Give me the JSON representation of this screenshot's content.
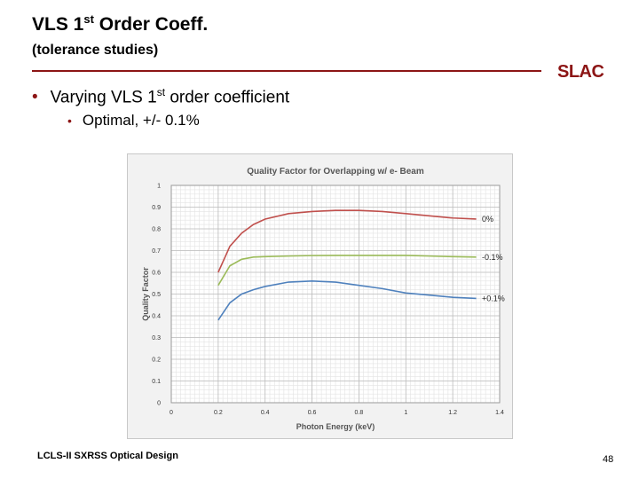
{
  "slide": {
    "title_main": "VLS 1",
    "title_sup": "st",
    "title_rest": " Order Coeff.",
    "subtitle": "(tolerance studies)",
    "logo": "SLAC",
    "bullet1_main": "Varying VLS 1",
    "bullet1_sup": "st",
    "bullet1_rest": " order coefficient",
    "bullet2": "Optimal, +/- 0.1%",
    "bullet_glyph": "•",
    "footer_left": "LCLS-II SXRSS Optical Design",
    "footer_right": "48",
    "accent_color": "#8c1515"
  },
  "chart_data": {
    "type": "line",
    "title": "Quality Factor for Overlapping w/ e- Beam",
    "xlabel": "Photon Energy (keV)",
    "ylabel": "Quality Factor",
    "xlim": [
      0,
      1.4
    ],
    "ylim": [
      0,
      1
    ],
    "x_ticks": [
      "0",
      "0.2",
      "0.4",
      "0.6",
      "0.8",
      "1",
      "1.2",
      "1.4"
    ],
    "y_ticks": [
      "0",
      "0.1",
      "0.2",
      "0.3",
      "0.4",
      "0.5",
      "0.6",
      "0.7",
      "0.8",
      "0.9",
      "1"
    ],
    "grid": true,
    "series": [
      {
        "name": "0%",
        "color": "#c0504d",
        "x": [
          0.2,
          0.25,
          0.3,
          0.35,
          0.4,
          0.5,
          0.6,
          0.7,
          0.8,
          0.9,
          1.0,
          1.1,
          1.2,
          1.3
        ],
        "y": [
          0.6,
          0.72,
          0.78,
          0.82,
          0.845,
          0.87,
          0.88,
          0.885,
          0.885,
          0.88,
          0.87,
          0.86,
          0.85,
          0.845
        ]
      },
      {
        "name": "-0.1%",
        "color": "#9bbb59",
        "x": [
          0.2,
          0.25,
          0.3,
          0.35,
          0.4,
          0.5,
          0.6,
          0.7,
          0.8,
          0.9,
          1.0,
          1.1,
          1.2,
          1.3
        ],
        "y": [
          0.54,
          0.63,
          0.66,
          0.67,
          0.672,
          0.675,
          0.677,
          0.678,
          0.678,
          0.678,
          0.678,
          0.675,
          0.672,
          0.67
        ]
      },
      {
        "name": "+0.1%",
        "color": "#4f81bd",
        "x": [
          0.2,
          0.25,
          0.3,
          0.35,
          0.4,
          0.5,
          0.6,
          0.7,
          0.8,
          0.9,
          1.0,
          1.1,
          1.2,
          1.3
        ],
        "y": [
          0.38,
          0.46,
          0.5,
          0.52,
          0.535,
          0.555,
          0.56,
          0.555,
          0.54,
          0.525,
          0.505,
          0.495,
          0.485,
          0.48
        ]
      }
    ]
  }
}
